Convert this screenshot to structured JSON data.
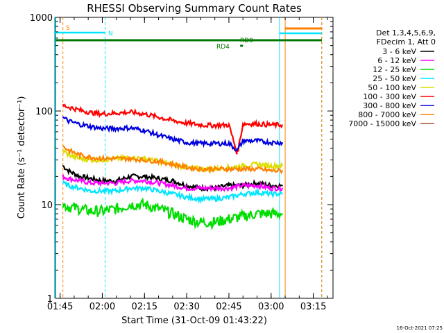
{
  "chart_data": {
    "type": "line",
    "title": "RHESSI Observing Summary Count Rates",
    "xlabel": "Start Time (31-Oct-09 01:43:22)",
    "ylabel": "Count Rate (s⁻¹ detector⁻¹)",
    "y_scale": "log",
    "ylim": [
      1,
      1000
    ],
    "xlim": [
      "01:43",
      "03:22"
    ],
    "x_ticks": [
      "01:45",
      "02:00",
      "02:15",
      "02:30",
      "02:45",
      "03:00",
      "03:15"
    ],
    "y_ticks": [
      "1",
      "10",
      "100",
      "1000"
    ],
    "grid": false,
    "legend_position": "right",
    "legend_header": [
      "Det 1,3,4,5,6,9,",
      "FDecim 1, Att 0"
    ],
    "flag_labels": [
      "S",
      "N",
      "RD0",
      "RD4"
    ],
    "timestamp": "16-Oct-2021 07:25",
    "series": [
      {
        "name": "3 - 6 keV",
        "color": "#000000",
        "x": [
          "01:46",
          "01:48",
          "01:52",
          "01:56",
          "02:00",
          "02:05",
          "02:10",
          "02:15",
          "02:20",
          "02:25",
          "02:30",
          "02:35",
          "02:40",
          "02:45",
          "02:50",
          "02:55",
          "03:00",
          "03:04"
        ],
        "values": [
          26,
          23,
          20,
          19,
          18,
          18,
          20,
          20,
          19,
          18,
          16,
          15,
          15,
          16,
          16,
          17,
          16,
          16
        ]
      },
      {
        "name": "6 - 12 keV",
        "color": "#ff00ff",
        "x": [
          "01:46",
          "01:48",
          "01:52",
          "01:56",
          "02:00",
          "02:05",
          "02:10",
          "02:15",
          "02:20",
          "02:25",
          "02:30",
          "02:35",
          "02:40",
          "02:45",
          "02:50",
          "02:55",
          "03:00",
          "03:04"
        ],
        "values": [
          20,
          19,
          18,
          17,
          17,
          17,
          18,
          18,
          17,
          16,
          15,
          15,
          15,
          15,
          16,
          16,
          15,
          15
        ]
      },
      {
        "name": "12 - 25 keV",
        "color": "#00dd00",
        "x": [
          "01:46",
          "01:48",
          "01:52",
          "01:56",
          "02:00",
          "02:05",
          "02:10",
          "02:15",
          "02:20",
          "02:25",
          "02:30",
          "02:35",
          "02:40",
          "02:45",
          "02:50",
          "02:55",
          "03:00",
          "03:04"
        ],
        "values": [
          10,
          9.5,
          9,
          8.5,
          8.5,
          9,
          10,
          10,
          9,
          8,
          7,
          6.5,
          6.5,
          7,
          7.5,
          8,
          8,
          8
        ]
      },
      {
        "name": "25 - 50 keV",
        "color": "#00e5ff",
        "x": [
          "01:46",
          "01:48",
          "01:52",
          "01:56",
          "02:00",
          "02:05",
          "02:10",
          "02:15",
          "02:20",
          "02:25",
          "02:30",
          "02:35",
          "02:40",
          "02:45",
          "02:50",
          "02:55",
          "03:00",
          "03:04"
        ],
        "values": [
          17,
          16,
          15,
          14,
          14,
          14,
          15,
          15,
          14,
          13,
          12,
          11.5,
          11.5,
          12,
          13,
          13.5,
          13,
          13
        ]
      },
      {
        "name": "50 - 100 keV",
        "color": "#dddd00",
        "x": [
          "01:46",
          "01:48",
          "01:52",
          "01:56",
          "02:00",
          "02:05",
          "02:10",
          "02:15",
          "02:20",
          "02:25",
          "02:30",
          "02:35",
          "02:40",
          "02:45",
          "02:50",
          "02:55",
          "03:00",
          "03:04"
        ],
        "values": [
          38,
          34,
          31,
          30,
          30,
          31,
          32,
          31,
          29,
          27,
          25,
          24,
          24,
          25,
          26,
          27,
          26,
          26
        ]
      },
      {
        "name": "100 - 300 keV",
        "color": "#ff0000",
        "x": [
          "01:46",
          "01:48",
          "01:52",
          "01:56",
          "02:00",
          "02:05",
          "02:10",
          "02:15",
          "02:20",
          "02:25",
          "02:30",
          "02:35",
          "02:40",
          "02:45",
          "02:48",
          "02:50",
          "02:55",
          "03:00",
          "03:04"
        ],
        "values": [
          115,
          110,
          102,
          96,
          93,
          95,
          97,
          93,
          86,
          79,
          74,
          71,
          70,
          71,
          35,
          73,
          73,
          71,
          71
        ]
      },
      {
        "name": "300 - 800 keV",
        "color": "#0000dd",
        "x": [
          "01:46",
          "01:48",
          "01:52",
          "01:56",
          "02:00",
          "02:05",
          "02:10",
          "02:15",
          "02:20",
          "02:25",
          "02:30",
          "02:35",
          "02:40",
          "02:45",
          "02:48",
          "02:50",
          "02:55",
          "03:00",
          "03:04"
        ],
        "values": [
          85,
          78,
          72,
          68,
          65,
          65,
          66,
          62,
          55,
          50,
          46,
          45,
          45,
          45,
          38,
          48,
          48,
          46,
          46
        ]
      },
      {
        "name": "800 - 7000 keV",
        "color": "#ff8000",
        "x": [
          "01:46",
          "01:48",
          "01:52",
          "01:56",
          "02:00",
          "02:05",
          "02:10",
          "02:15",
          "02:20",
          "02:25",
          "02:30",
          "02:35",
          "02:40",
          "02:45",
          "02:50",
          "02:55",
          "03:00",
          "03:04"
        ],
        "values": [
          42,
          38,
          34,
          32,
          31,
          31,
          31,
          30,
          29,
          27,
          25,
          24,
          24,
          24,
          24,
          24,
          23,
          23
        ]
      },
      {
        "name": "7000 - 15000 keV",
        "color": "#a0522d",
        "x": [],
        "values": []
      }
    ]
  }
}
